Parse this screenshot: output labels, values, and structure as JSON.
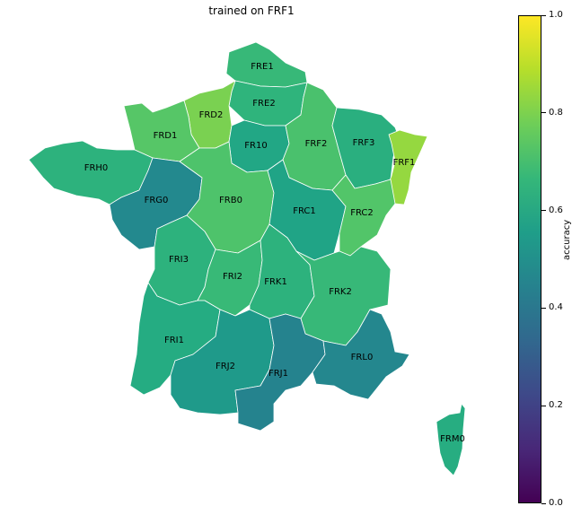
{
  "title": "trained on FRF1",
  "colorbar": {
    "label": "accuracy",
    "ticks": [
      "0.0",
      "0.2",
      "0.4",
      "0.6",
      "0.8",
      "1.0"
    ],
    "range": [
      0.0,
      1.0
    ],
    "colormap": "viridis"
  },
  "highlighted_region": "FRF1",
  "regions": [
    {
      "code": "FRE1",
      "color": "#37b878"
    },
    {
      "code": "FRE2",
      "color": "#2fb47c"
    },
    {
      "code": "FRD2",
      "color": "#7ad151"
    },
    {
      "code": "FRD1",
      "color": "#56c667"
    },
    {
      "code": "FR10",
      "color": "#22a785"
    },
    {
      "code": "FRF2",
      "color": "#4ac16d"
    },
    {
      "code": "FRF3",
      "color": "#2aaf7f"
    },
    {
      "code": "FRF1",
      "color": "#95d840"
    },
    {
      "code": "FRH0",
      "color": "#2db27d"
    },
    {
      "code": "FRG0",
      "color": "#23898e"
    },
    {
      "code": "FRB0",
      "color": "#4ec36b"
    },
    {
      "code": "FRC1",
      "color": "#20a486"
    },
    {
      "code": "FRC2",
      "color": "#52c569"
    },
    {
      "code": "FRI3",
      "color": "#2db27d"
    },
    {
      "code": "FRI2",
      "color": "#38b977"
    },
    {
      "code": "FRK1",
      "color": "#2db27d"
    },
    {
      "code": "FRK2",
      "color": "#37b878"
    },
    {
      "code": "FRI1",
      "color": "#25ac82"
    },
    {
      "code": "FRJ2",
      "color": "#1f9a8a"
    },
    {
      "code": "FRJ1",
      "color": "#25838e"
    },
    {
      "code": "FRL0",
      "color": "#24878e"
    },
    {
      "code": "FRM0",
      "color": "#27ad81"
    }
  ]
}
